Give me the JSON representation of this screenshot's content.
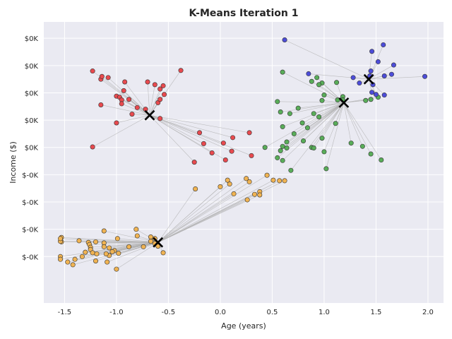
{
  "chart_data": {
    "type": "scatter",
    "title": "K-Means Iteration 1",
    "xlabel": "Age (years)",
    "ylabel": "Income ($)",
    "xlim": [
      -1.7,
      2.15
    ],
    "ylim": [
      -2.85,
      2.3
    ],
    "x_ticks": [
      -1.5,
      -1.0,
      -0.5,
      0.0,
      0.5,
      1.0,
      1.5,
      2.0
    ],
    "x_tick_labels": [
      "-1.5",
      "-1.0",
      "-0.5",
      "0.0",
      "0.5",
      "1.0",
      "1.5",
      "2.0"
    ],
    "y_ticks": [
      -2.0,
      -1.5,
      -1.0,
      -0.5,
      0.0,
      0.5,
      1.0,
      1.5,
      2.0
    ],
    "y_tick_labels": [
      "$-0K",
      "$-0K",
      "$-0K",
      "$-0K",
      "$0K",
      "$0K",
      "$0K",
      "$0K",
      "$0K"
    ],
    "grid": true,
    "background": "#eaeaf2",
    "connector_color": "#b0b0b0",
    "clusters": [
      {
        "color": "#e84a4f",
        "centroid": [
          -0.68,
          0.59
        ],
        "points": [
          [
            -1.23,
            1.4
          ],
          [
            -1.15,
            1.25
          ],
          [
            -1.14,
            1.3
          ],
          [
            -1.08,
            1.28
          ],
          [
            -0.92,
            1.2
          ],
          [
            -0.93,
            1.04
          ],
          [
            -1.0,
            0.94
          ],
          [
            -0.97,
            0.92
          ],
          [
            -0.95,
            0.87
          ],
          [
            -0.88,
            0.88
          ],
          [
            -0.95,
            0.8
          ],
          [
            -1.15,
            0.78
          ],
          [
            -0.8,
            0.73
          ],
          [
            -0.72,
            0.7
          ],
          [
            -0.6,
            0.82
          ],
          [
            -0.58,
            0.88
          ],
          [
            -0.54,
            0.97
          ],
          [
            -0.58,
            1.07
          ],
          [
            -0.55,
            1.13
          ],
          [
            -0.63,
            1.15
          ],
          [
            -0.7,
            1.2
          ],
          [
            -0.38,
            1.41
          ],
          [
            -0.85,
            0.61
          ],
          [
            -1.0,
            0.45
          ],
          [
            -0.58,
            0.53
          ],
          [
            -0.2,
            0.27
          ],
          [
            0.28,
            0.27
          ],
          [
            0.12,
            0.18
          ],
          [
            -0.16,
            0.07
          ],
          [
            0.03,
            0.08
          ],
          [
            -0.08,
            -0.1
          ],
          [
            0.11,
            -0.07
          ],
          [
            0.3,
            -0.15
          ],
          [
            -1.23,
            0.01
          ],
          [
            -0.25,
            -0.27
          ],
          [
            0.05,
            -0.23
          ]
        ]
      },
      {
        "color": "#59ad59",
        "centroid": [
          1.19,
          0.82
        ],
        "points": [
          [
            0.6,
            1.38
          ],
          [
            0.93,
            1.28
          ],
          [
            0.98,
            1.18
          ],
          [
            1.12,
            1.19
          ],
          [
            0.88,
            1.21
          ],
          [
            0.95,
            1.15
          ],
          [
            1.0,
            0.96
          ],
          [
            0.55,
            0.84
          ],
          [
            0.98,
            0.86
          ],
          [
            1.18,
            0.93
          ],
          [
            1.18,
            0.87
          ],
          [
            1.13,
            0.87
          ],
          [
            1.45,
            0.88
          ],
          [
            1.52,
            0.92
          ],
          [
            1.4,
            0.86
          ],
          [
            0.75,
            0.72
          ],
          [
            0.58,
            0.65
          ],
          [
            0.67,
            0.62
          ],
          [
            0.9,
            0.62
          ],
          [
            0.95,
            0.56
          ],
          [
            0.79,
            0.45
          ],
          [
            1.11,
            0.44
          ],
          [
            0.6,
            0.38
          ],
          [
            0.84,
            0.36
          ],
          [
            0.71,
            0.25
          ],
          [
            0.98,
            0.17
          ],
          [
            0.8,
            0.12
          ],
          [
            0.64,
            0.1
          ],
          [
            0.6,
            0.02
          ],
          [
            0.64,
            -0.01
          ],
          [
            0.43,
            0.0
          ],
          [
            0.58,
            -0.06
          ],
          [
            0.88,
            0.0
          ],
          [
            0.9,
            -0.01
          ],
          [
            1.0,
            -0.08
          ],
          [
            1.26,
            0.08
          ],
          [
            1.37,
            0.02
          ],
          [
            1.45,
            -0.12
          ],
          [
            0.55,
            -0.19
          ],
          [
            0.6,
            -0.24
          ],
          [
            0.68,
            -0.42
          ],
          [
            1.02,
            -0.39
          ],
          [
            1.55,
            -0.23
          ]
        ]
      },
      {
        "color": "#4d4dd9",
        "centroid": [
          1.43,
          1.25
        ],
        "points": [
          [
            0.62,
            1.97
          ],
          [
            1.57,
            1.88
          ],
          [
            1.46,
            1.76
          ],
          [
            1.52,
            1.57
          ],
          [
            1.67,
            1.51
          ],
          [
            1.45,
            1.4
          ],
          [
            1.65,
            1.34
          ],
          [
            1.58,
            1.31
          ],
          [
            1.44,
            1.31
          ],
          [
            1.97,
            1.3
          ],
          [
            1.28,
            1.28
          ],
          [
            1.34,
            1.18
          ],
          [
            1.47,
            1.15
          ],
          [
            1.46,
            1.01
          ],
          [
            1.5,
            0.97
          ],
          [
            1.58,
            0.96
          ],
          [
            0.85,
            1.35
          ]
        ]
      },
      {
        "color": "#f0b352",
        "centroid": [
          -0.6,
          -1.74
        ],
        "points": [
          [
            0.25,
            -0.57
          ],
          [
            0.45,
            -0.51
          ],
          [
            0.62,
            -0.61
          ],
          [
            0.57,
            -0.61
          ],
          [
            0.38,
            -0.81
          ],
          [
            0.51,
            -0.6
          ],
          [
            0.28,
            -0.63
          ],
          [
            0.09,
            -0.67
          ],
          [
            0.0,
            -0.72
          ],
          [
            -0.24,
            -0.76
          ],
          [
            0.07,
            -0.6
          ],
          [
            0.13,
            -0.85
          ],
          [
            0.33,
            -0.86
          ],
          [
            0.38,
            -0.87
          ],
          [
            0.26,
            -0.96
          ],
          [
            -1.53,
            -1.65
          ],
          [
            -1.53,
            -1.73
          ],
          [
            -1.36,
            -1.71
          ],
          [
            -1.27,
            -1.74
          ],
          [
            -1.26,
            -1.78
          ],
          [
            -1.2,
            -1.73
          ],
          [
            -1.12,
            -1.75
          ],
          [
            -1.12,
            -1.82
          ],
          [
            -1.25,
            -1.83
          ],
          [
            -1.25,
            -1.87
          ],
          [
            -1.3,
            -1.92
          ],
          [
            -1.07,
            -1.84
          ],
          [
            -1.02,
            -1.89
          ],
          [
            -1.07,
            -1.98
          ],
          [
            -1.04,
            -1.91
          ],
          [
            -1.23,
            -1.93
          ],
          [
            -1.19,
            -1.95
          ],
          [
            -1.1,
            -1.95
          ],
          [
            -1.33,
            -2.0
          ],
          [
            -1.4,
            -2.05
          ],
          [
            -1.54,
            -1.72
          ],
          [
            -1.54,
            -2.0
          ],
          [
            -1.54,
            -2.05
          ],
          [
            -1.47,
            -2.1
          ],
          [
            -1.42,
            -2.15
          ],
          [
            -1.2,
            -2.08
          ],
          [
            -1.09,
            -2.1
          ],
          [
            -1.0,
            -2.23
          ],
          [
            -1.12,
            -1.53
          ],
          [
            -0.99,
            -1.67
          ],
          [
            -0.81,
            -1.5
          ],
          [
            -0.8,
            -1.62
          ],
          [
            -0.67,
            -1.64
          ],
          [
            -0.63,
            -1.67
          ],
          [
            -0.67,
            -1.72
          ],
          [
            -0.63,
            -1.76
          ],
          [
            -0.6,
            -1.81
          ],
          [
            -0.55,
            -1.93
          ],
          [
            -0.98,
            -1.94
          ],
          [
            -0.74,
            -1.82
          ],
          [
            -0.88,
            -1.82
          ],
          [
            -1.54,
            -1.67
          ]
        ]
      }
    ]
  }
}
